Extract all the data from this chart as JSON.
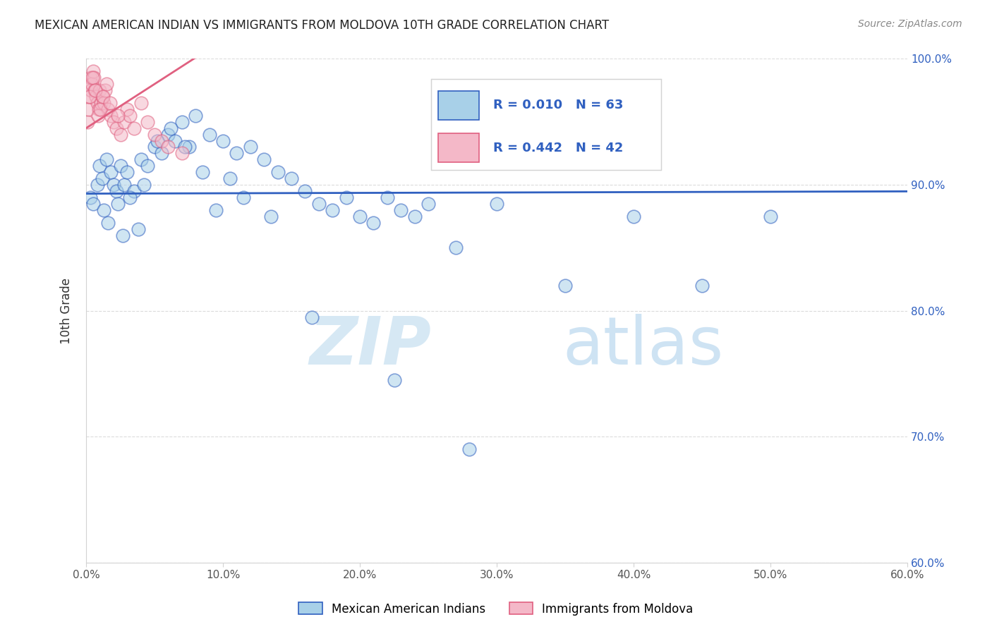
{
  "title": "MEXICAN AMERICAN INDIAN VS IMMIGRANTS FROM MOLDOVA 10TH GRADE CORRELATION CHART",
  "source": "Source: ZipAtlas.com",
  "ylabel": "10th Grade",
  "xlim": [
    0.0,
    60.0
  ],
  "ylim": [
    60.0,
    100.0
  ],
  "x_ticks": [
    0.0,
    10.0,
    20.0,
    30.0,
    40.0,
    50.0,
    60.0
  ],
  "y_ticks": [
    60.0,
    70.0,
    80.0,
    90.0,
    100.0
  ],
  "legend_labels": [
    "Mexican American Indians",
    "Immigrants from Moldova"
  ],
  "legend_r_blue": "R = 0.010",
  "legend_n_blue": "N = 63",
  "legend_r_pink": "R = 0.442",
  "legend_n_pink": "N = 42",
  "color_blue": "#a8d0e8",
  "color_pink": "#f4b8c8",
  "color_blue_line": "#3060c0",
  "color_pink_line": "#e06080",
  "watermark_zip": "ZIP",
  "watermark_atlas": "atlas",
  "blue_x": [
    0.3,
    0.5,
    0.8,
    1.0,
    1.2,
    1.5,
    1.8,
    2.0,
    2.2,
    2.5,
    2.8,
    3.0,
    3.5,
    4.0,
    4.5,
    5.0,
    5.5,
    6.0,
    6.5,
    7.0,
    7.5,
    8.0,
    9.0,
    10.0,
    11.0,
    12.0,
    13.0,
    14.0,
    15.0,
    16.0,
    17.0,
    18.0,
    19.0,
    20.0,
    21.0,
    22.0,
    23.0,
    24.0,
    25.0,
    27.0,
    30.0,
    35.0,
    40.0,
    45.0,
    50.0,
    1.3,
    1.6,
    2.3,
    2.7,
    3.2,
    3.8,
    4.2,
    5.2,
    6.2,
    7.2,
    8.5,
    9.5,
    10.5,
    11.5,
    13.5,
    16.5,
    22.5,
    28.0
  ],
  "blue_y": [
    89.0,
    88.5,
    90.0,
    91.5,
    90.5,
    92.0,
    91.0,
    90.0,
    89.5,
    91.5,
    90.0,
    91.0,
    89.5,
    92.0,
    91.5,
    93.0,
    92.5,
    94.0,
    93.5,
    95.0,
    93.0,
    95.5,
    94.0,
    93.5,
    92.5,
    93.0,
    92.0,
    91.0,
    90.5,
    89.5,
    88.5,
    88.0,
    89.0,
    87.5,
    87.0,
    89.0,
    88.0,
    87.5,
    88.5,
    85.0,
    88.5,
    82.0,
    87.5,
    82.0,
    87.5,
    88.0,
    87.0,
    88.5,
    86.0,
    89.0,
    86.5,
    90.0,
    93.5,
    94.5,
    93.0,
    91.0,
    88.0,
    90.5,
    89.0,
    87.5,
    79.5,
    74.5,
    69.0
  ],
  "pink_x": [
    0.1,
    0.15,
    0.2,
    0.25,
    0.3,
    0.35,
    0.4,
    0.5,
    0.55,
    0.6,
    0.7,
    0.8,
    0.9,
    1.0,
    1.1,
    1.2,
    1.3,
    1.4,
    1.5,
    1.6,
    1.8,
    2.0,
    2.2,
    2.5,
    2.8,
    3.0,
    3.2,
    3.5,
    4.0,
    4.5,
    5.0,
    5.5,
    6.0,
    7.0,
    0.25,
    0.45,
    0.65,
    0.85,
    1.05,
    1.25,
    1.75,
    2.3
  ],
  "pink_y": [
    95.0,
    96.0,
    97.0,
    98.0,
    98.5,
    97.5,
    98.0,
    99.0,
    98.5,
    97.5,
    97.0,
    96.5,
    96.0,
    97.5,
    96.5,
    97.0,
    96.5,
    97.5,
    98.0,
    96.0,
    95.5,
    95.0,
    94.5,
    94.0,
    95.0,
    96.0,
    95.5,
    94.5,
    96.5,
    95.0,
    94.0,
    93.5,
    93.0,
    92.5,
    97.0,
    98.5,
    97.5,
    95.5,
    96.0,
    97.0,
    96.5,
    95.5
  ]
}
